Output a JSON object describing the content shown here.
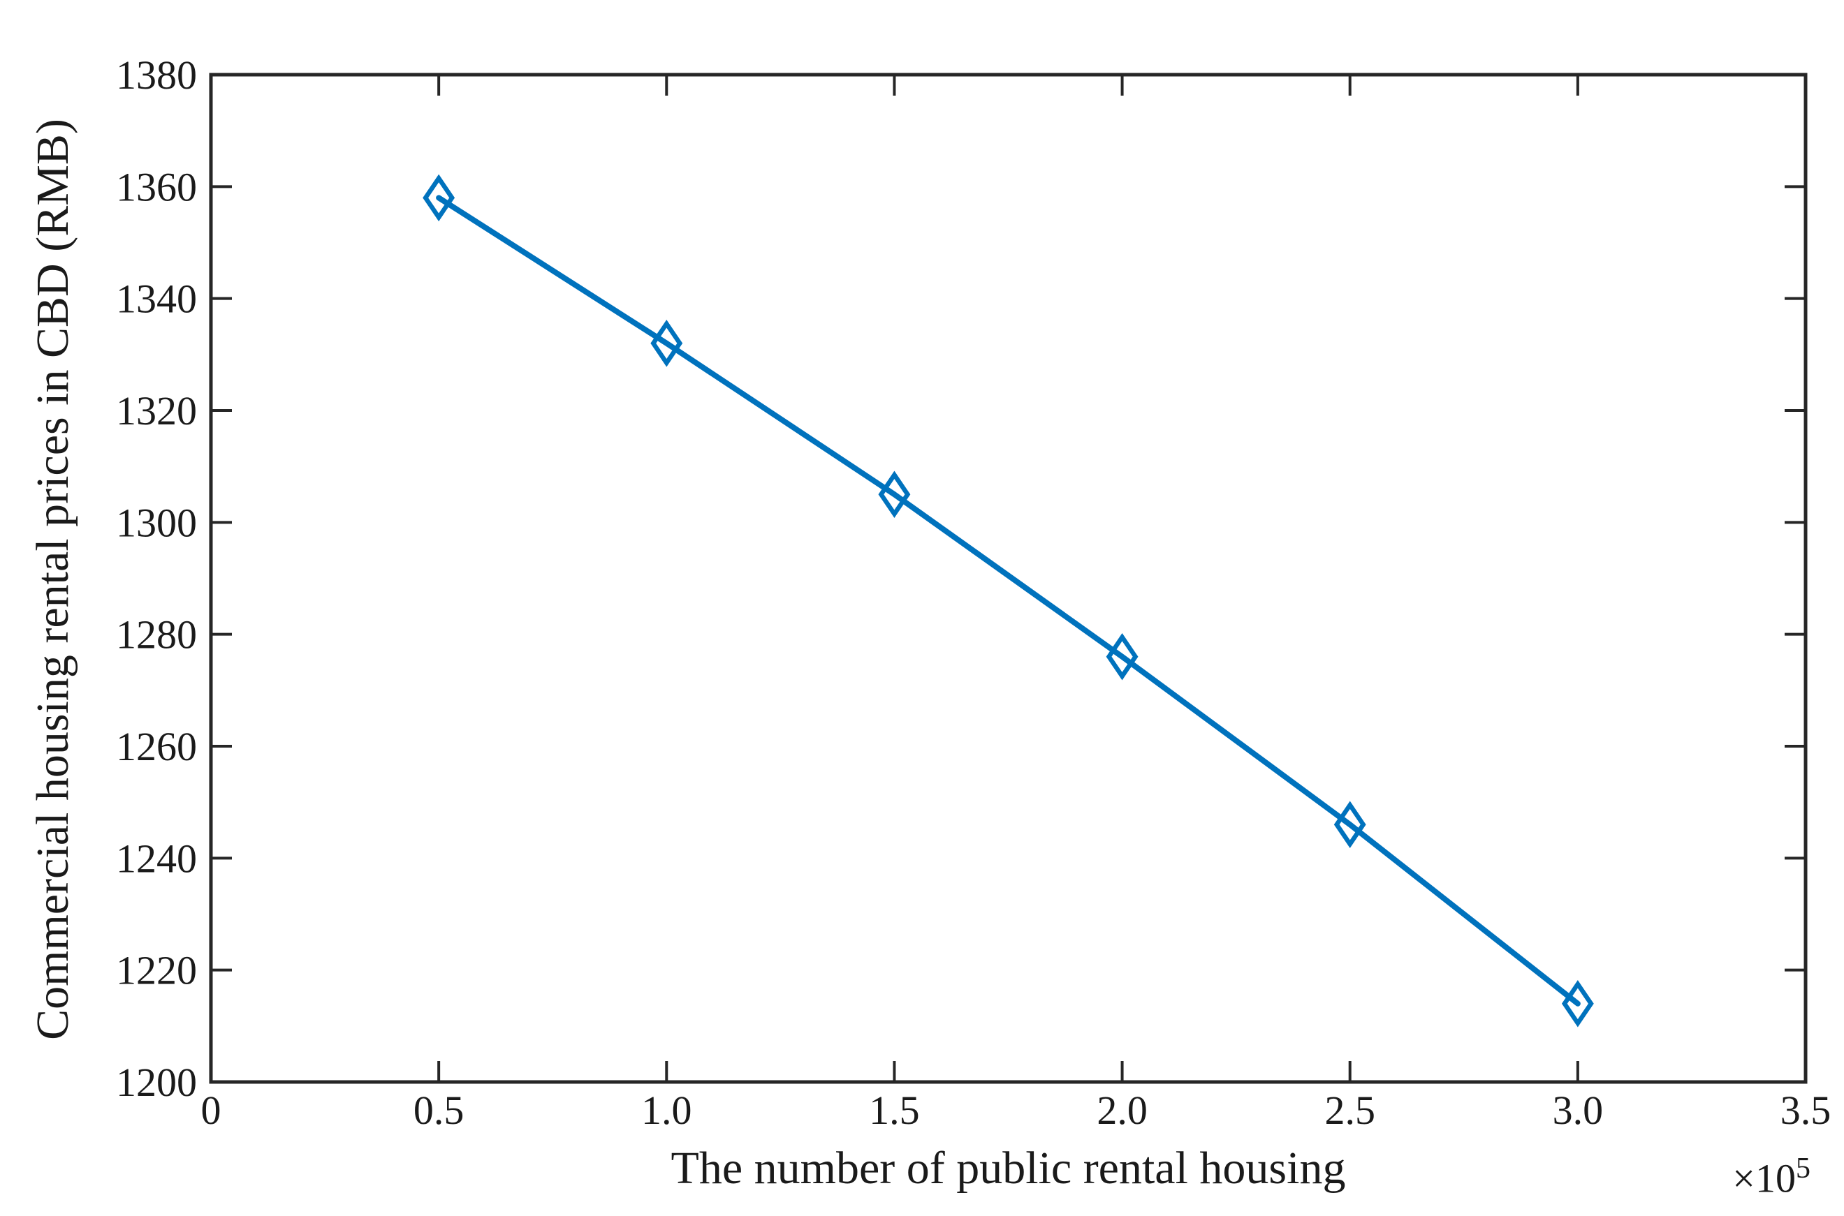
{
  "axes": {
    "xlabel": "The number of public rental housing",
    "ylabel": "Commercial housing rental prices in CBD (RMB)",
    "x_offset_text": {
      "base": "×10",
      "exponent": "5"
    }
  },
  "chart_data": {
    "type": "line",
    "title": "",
    "xlabel": "The number of public rental housing",
    "ylabel": "Commercial housing rental prices in CBD (RMB)",
    "x_unit_multiplier": 100000,
    "x_offset_label": "×10⁵",
    "xlim": [
      0,
      350000
    ],
    "ylim": [
      1200,
      1380
    ],
    "grid": false,
    "legend": null,
    "xticks": {
      "values": [
        0,
        50000,
        100000,
        150000,
        200000,
        250000,
        300000,
        350000
      ],
      "labels": [
        "0",
        "0.5",
        "1.0",
        "1.5",
        "2.0",
        "2.5",
        "3.0",
        "3.5"
      ]
    },
    "yticks": {
      "values": [
        1200,
        1220,
        1240,
        1260,
        1280,
        1300,
        1320,
        1340,
        1360,
        1380
      ],
      "labels": [
        "1200",
        "1220",
        "1240",
        "1260",
        "1280",
        "1300",
        "1320",
        "1340",
        "1360",
        "1380"
      ]
    },
    "series": [
      {
        "name": "Commercial housing rental prices in CBD",
        "color": "#0072BD",
        "marker": "open-diamond",
        "x": [
          50000,
          100000,
          150000,
          200000,
          250000,
          300000
        ],
        "y": [
          1358,
          1332,
          1305,
          1276,
          1246,
          1214
        ]
      }
    ]
  },
  "colors": {
    "series_blue": "#0072BD",
    "axis": "#262626",
    "text": "#1a1a1a",
    "background": "#ffffff"
  }
}
